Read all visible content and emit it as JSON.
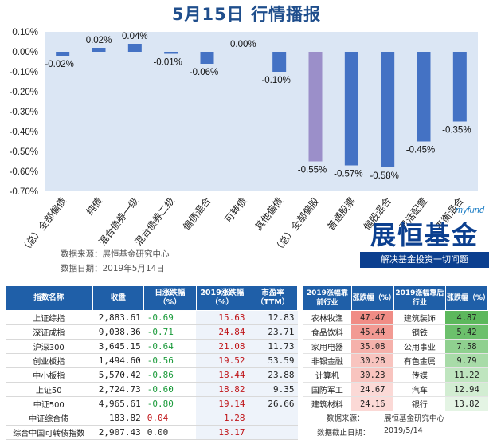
{
  "title": "5月15日  行情播报",
  "chart_data": {
    "type": "bar",
    "categories": [
      "（总）全部偏债",
      "纯债",
      "混合债券一级",
      "混合债券二级",
      "偏债混合",
      "可转债",
      "其他偏债",
      "（总）全部偏股",
      "普通股票",
      "偏股混合",
      "灵活配置",
      "平衡混合"
    ],
    "values": [
      -0.02,
      0.02,
      0.04,
      -0.01,
      -0.06,
      0.0,
      -0.1,
      -0.55,
      -0.57,
      -0.58,
      -0.45,
      -0.35
    ],
    "value_labels": [
      "-0.02%",
      "0.02%",
      "0.04%",
      "-0.01%",
      "-0.06%",
      "0.00%",
      "-0.10%",
      "-0.55%",
      "-0.57%",
      "-0.58%",
      "-0.45%",
      "-0.35%"
    ],
    "colors": [
      "#4472c4",
      "#4472c4",
      "#4472c4",
      "#4472c4",
      "#4472c4",
      "#4472c4",
      "#4472c4",
      "#9b8fc9",
      "#4472c4",
      "#4472c4",
      "#4472c4",
      "#4472c4"
    ],
    "ylim": [
      -0.7,
      0.1
    ],
    "yticks": [
      "0.10%",
      "0.00%",
      "-0.10%",
      "-0.20%",
      "-0.30%",
      "-0.40%",
      "-0.50%",
      "-0.60%",
      "-0.70%"
    ],
    "ytick_values": [
      0.1,
      0.0,
      -0.1,
      -0.2,
      -0.3,
      -0.4,
      -0.5,
      -0.6,
      -0.7
    ],
    "plot_bg": "#dbe6f4",
    "grid": false
  },
  "source": {
    "line1": "数据来源：展恒基金研究中心",
    "line2": "数据日期：2019年5月14日"
  },
  "logo": {
    "myfund": "myfund",
    "brand": "展恒基金",
    "slogan": "解决基金投资一切问题"
  },
  "index_table": {
    "headers": [
      "指数名称",
      "收盘",
      "日涨跌幅（%）",
      "2019涨跌幅（%）",
      "市盈率（TTM）"
    ],
    "rows": [
      {
        "name": "上证综指",
        "close": "2,883.61",
        "daily": "-0.69",
        "ytd": "15.63",
        "pe": "12.83"
      },
      {
        "name": "深证成指",
        "close": "9,038.36",
        "daily": "-0.71",
        "ytd": "24.84",
        "pe": "23.71"
      },
      {
        "name": "沪深300",
        "close": "3,645.15",
        "daily": "-0.64",
        "ytd": "21.08",
        "pe": "11.73"
      },
      {
        "name": "创业板指",
        "close": "1,494.60",
        "daily": "-0.56",
        "ytd": "19.52",
        "pe": "53.59"
      },
      {
        "name": "中小板指",
        "close": "5,570.42",
        "daily": "-0.86",
        "ytd": "18.44",
        "pe": "23.88"
      },
      {
        "name": "上证50",
        "close": "2,724.73",
        "daily": "-0.60",
        "ytd": "18.82",
        "pe": "9.35"
      },
      {
        "name": "中证500",
        "close": "4,965.61",
        "daily": "-0.80",
        "ytd": "19.14",
        "pe": "26.66"
      },
      {
        "name": "中证综合债",
        "close": "183.82",
        "daily": "0.04",
        "ytd": "1.28",
        "pe": ""
      },
      {
        "name": "综合中国可转债指数",
        "close": "2,907.43",
        "daily": "0.00",
        "ytd": "13.17",
        "pe": ""
      }
    ]
  },
  "industry_table": {
    "headers": [
      "2019涨幅靠前行业",
      "涨跌幅（%）",
      "2019涨幅靠后行业",
      "涨跌幅（%）"
    ],
    "rows": [
      {
        "top": "农林牧渔",
        "top_chg": "47.47",
        "bottom": "建筑装饰",
        "bottom_chg": "4.87"
      },
      {
        "top": "食品饮料",
        "top_chg": "45.44",
        "bottom": "钢铁",
        "bottom_chg": "5.42"
      },
      {
        "top": "家用电器",
        "top_chg": "35.08",
        "bottom": "公用事业",
        "bottom_chg": "7.58"
      },
      {
        "top": "非银金融",
        "top_chg": "30.28",
        "bottom": "有色金属",
        "bottom_chg": "9.79"
      },
      {
        "top": "计算机",
        "top_chg": "30.23",
        "bottom": "传媒",
        "bottom_chg": "11.22"
      },
      {
        "top": "国防军工",
        "top_chg": "24.67",
        "bottom": "汽车",
        "bottom_chg": "12.94"
      },
      {
        "top": "建筑材料",
        "top_chg": "24.16",
        "bottom": "银行",
        "bottom_chg": "13.82"
      }
    ],
    "source_label": "数据来源：",
    "source_value": "展恒基金研究中心",
    "date_label": "数据截止日期：",
    "date_value": "2019/5/14"
  }
}
